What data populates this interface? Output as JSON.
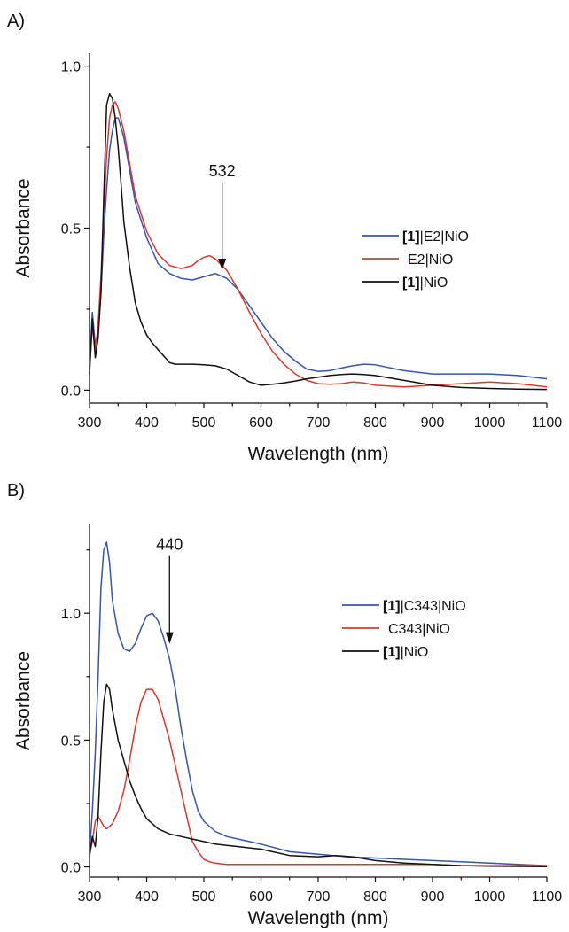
{
  "chart_data": [
    {
      "type": "line",
      "panel_label": "A)",
      "xlabel": "Wavelength (nm)",
      "ylabel": "Absorbance",
      "xlim": [
        300,
        1100
      ],
      "ylim": [
        -0.04,
        1.04
      ],
      "x_ticks": [
        300,
        400,
        500,
        600,
        700,
        800,
        900,
        1000,
        1100
      ],
      "y_ticks": [
        0.0,
        0.5,
        1.0
      ],
      "y_tick_labels": [
        "0.0",
        "0.5",
        "1.0"
      ],
      "legend_position": "right",
      "annotation": {
        "text": "532",
        "x": 532,
        "y_text": 0.66,
        "y_arrow_end": 0.37
      },
      "series": [
        {
          "name": "[1]|E2|NiO",
          "name_bold": "[1]",
          "name_rest": "|E2|NiO",
          "color": "#3355b5",
          "x": [
            300,
            305,
            310,
            315,
            320,
            325,
            330,
            335,
            340,
            345,
            350,
            360,
            370,
            380,
            400,
            420,
            440,
            460,
            480,
            500,
            520,
            540,
            560,
            580,
            600,
            620,
            640,
            660,
            680,
            700,
            720,
            740,
            760,
            780,
            800,
            850,
            900,
            950,
            1000,
            1050,
            1100
          ],
          "y": [
            0.07,
            0.24,
            0.14,
            0.18,
            0.3,
            0.48,
            0.62,
            0.74,
            0.8,
            0.84,
            0.84,
            0.78,
            0.68,
            0.58,
            0.47,
            0.39,
            0.36,
            0.345,
            0.34,
            0.35,
            0.36,
            0.345,
            0.31,
            0.26,
            0.21,
            0.16,
            0.12,
            0.09,
            0.065,
            0.058,
            0.06,
            0.068,
            0.075,
            0.08,
            0.078,
            0.06,
            0.05,
            0.05,
            0.05,
            0.045,
            0.035
          ]
        },
        {
          "name": "E2|NiO",
          "name_bold": "",
          "name_rest": "E2|NiO",
          "color": "#e3352c",
          "x": [
            300,
            305,
            310,
            315,
            320,
            325,
            330,
            335,
            340,
            345,
            350,
            360,
            370,
            380,
            400,
            420,
            440,
            460,
            480,
            490,
            500,
            510,
            520,
            540,
            560,
            580,
            600,
            620,
            640,
            660,
            680,
            700,
            720,
            740,
            760,
            780,
            800,
            850,
            900,
            950,
            1000,
            1050,
            1100
          ],
          "y": [
            0.06,
            0.2,
            0.12,
            0.2,
            0.35,
            0.55,
            0.72,
            0.84,
            0.88,
            0.89,
            0.87,
            0.8,
            0.7,
            0.6,
            0.49,
            0.42,
            0.385,
            0.375,
            0.385,
            0.4,
            0.41,
            0.415,
            0.405,
            0.37,
            0.31,
            0.24,
            0.175,
            0.12,
            0.08,
            0.05,
            0.03,
            0.02,
            0.018,
            0.02,
            0.025,
            0.022,
            0.015,
            0.01,
            0.015,
            0.02,
            0.025,
            0.02,
            0.01
          ]
        },
        {
          "name": "[1]|NiO",
          "name_bold": "[1]",
          "name_rest": "|NiO",
          "color": "#111111",
          "x": [
            300,
            305,
            310,
            315,
            320,
            325,
            330,
            335,
            340,
            345,
            350,
            355,
            360,
            370,
            380,
            390,
            400,
            410,
            420,
            430,
            440,
            450,
            460,
            480,
            500,
            520,
            540,
            560,
            580,
            600,
            620,
            640,
            660,
            680,
            700,
            720,
            740,
            760,
            780,
            800,
            850,
            900,
            950,
            1000,
            1050,
            1100
          ],
          "y": [
            0.05,
            0.22,
            0.1,
            0.16,
            0.3,
            0.6,
            0.88,
            0.915,
            0.9,
            0.84,
            0.75,
            0.64,
            0.52,
            0.38,
            0.27,
            0.21,
            0.17,
            0.145,
            0.125,
            0.105,
            0.085,
            0.08,
            0.08,
            0.08,
            0.078,
            0.075,
            0.065,
            0.045,
            0.025,
            0.015,
            0.018,
            0.022,
            0.028,
            0.035,
            0.04,
            0.045,
            0.048,
            0.05,
            0.048,
            0.045,
            0.03,
            0.015,
            0.008,
            0.005,
            0.003,
            0.002
          ]
        }
      ]
    },
    {
      "type": "line",
      "panel_label": "B)",
      "xlabel": "Wavelength (nm)",
      "ylabel": "Absorbance",
      "xlim": [
        300,
        1100
      ],
      "ylim": [
        -0.04,
        1.35
      ],
      "x_ticks": [
        300,
        400,
        500,
        600,
        700,
        800,
        900,
        1000,
        1100
      ],
      "y_ticks": [
        0.0,
        0.5,
        1.0
      ],
      "y_tick_labels": [
        "0.0",
        "0.5",
        "1.0"
      ],
      "legend_position": "right",
      "annotation": {
        "text": "440",
        "x": 440,
        "y_text": 1.25,
        "y_arrow_end": 0.88
      },
      "series": [
        {
          "name": "[1]|C343|NiO",
          "name_bold": "[1]",
          "name_rest": "|C343|NiO",
          "color": "#3355b5",
          "x": [
            300,
            305,
            310,
            315,
            320,
            325,
            330,
            335,
            340,
            350,
            360,
            370,
            380,
            390,
            400,
            410,
            420,
            430,
            440,
            450,
            460,
            470,
            480,
            490,
            500,
            520,
            540,
            560,
            580,
            600,
            650,
            700,
            750,
            800,
            850,
            900,
            950,
            1000,
            1050,
            1100
          ],
          "y": [
            0.05,
            0.22,
            0.45,
            0.75,
            1.1,
            1.25,
            1.28,
            1.2,
            1.05,
            0.92,
            0.86,
            0.85,
            0.88,
            0.94,
            0.99,
            1.0,
            0.97,
            0.9,
            0.82,
            0.7,
            0.55,
            0.42,
            0.3,
            0.22,
            0.18,
            0.14,
            0.12,
            0.11,
            0.1,
            0.09,
            0.06,
            0.05,
            0.04,
            0.035,
            0.03,
            0.025,
            0.02,
            0.015,
            0.01,
            0.005
          ]
        },
        {
          "name": "C343|NiO",
          "name_bold": "",
          "name_rest": "C343|NiO",
          "color": "#e3352c",
          "x": [
            300,
            305,
            310,
            315,
            320,
            325,
            330,
            340,
            350,
            360,
            370,
            380,
            390,
            400,
            410,
            420,
            430,
            440,
            450,
            460,
            470,
            480,
            490,
            500,
            510,
            520,
            530,
            540,
            550,
            560,
            580,
            600,
            650,
            700,
            750,
            800,
            850,
            900,
            950,
            1000,
            1050,
            1100
          ],
          "y": [
            0.05,
            0.1,
            0.18,
            0.2,
            0.18,
            0.16,
            0.15,
            0.17,
            0.22,
            0.3,
            0.42,
            0.55,
            0.65,
            0.7,
            0.7,
            0.66,
            0.58,
            0.5,
            0.4,
            0.3,
            0.2,
            0.1,
            0.06,
            0.03,
            0.02,
            0.015,
            0.012,
            0.01,
            0.01,
            0.01,
            0.01,
            0.01,
            0.01,
            0.01,
            0.01,
            0.01,
            0.01,
            0.01,
            0.005,
            0.005,
            0.005,
            0.005
          ]
        },
        {
          "name": "[1]|NiO",
          "name_bold": "[1]",
          "name_rest": "|NiO",
          "color": "#111111",
          "x": [
            300,
            305,
            310,
            315,
            320,
            325,
            330,
            335,
            340,
            350,
            360,
            370,
            380,
            390,
            400,
            420,
            440,
            460,
            480,
            500,
            520,
            540,
            560,
            580,
            600,
            620,
            650,
            700,
            730,
            760,
            800,
            850,
            900,
            950,
            1000,
            1050,
            1100
          ],
          "y": [
            0.04,
            0.12,
            0.08,
            0.2,
            0.45,
            0.65,
            0.72,
            0.7,
            0.62,
            0.5,
            0.42,
            0.34,
            0.28,
            0.23,
            0.19,
            0.15,
            0.13,
            0.12,
            0.11,
            0.1,
            0.09,
            0.085,
            0.08,
            0.075,
            0.07,
            0.06,
            0.045,
            0.04,
            0.045,
            0.04,
            0.025,
            0.015,
            0.01,
            0.005,
            0.003,
            0.002,
            0.001
          ]
        }
      ]
    }
  ]
}
